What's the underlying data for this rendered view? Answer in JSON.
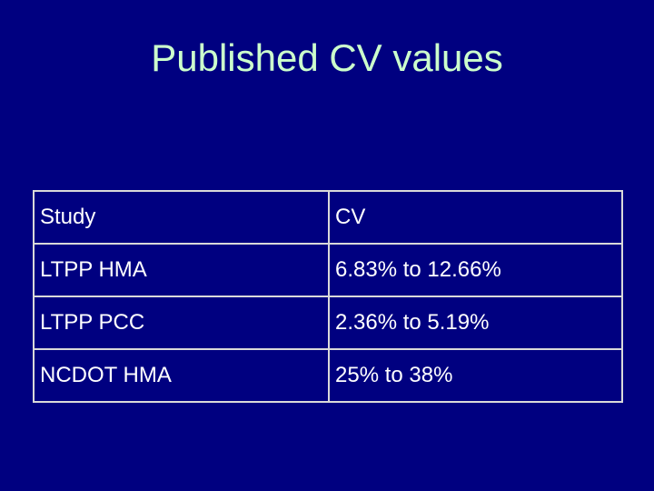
{
  "title": "Published CV values",
  "table": {
    "rows": [
      [
        "Study",
        "CV"
      ],
      [
        "LTPP HMA",
        "6.83% to 12.66%"
      ],
      [
        "LTPP PCC",
        "2.36% to 5.19%"
      ],
      [
        "NCDOT HMA",
        "25% to 38%"
      ]
    ]
  }
}
